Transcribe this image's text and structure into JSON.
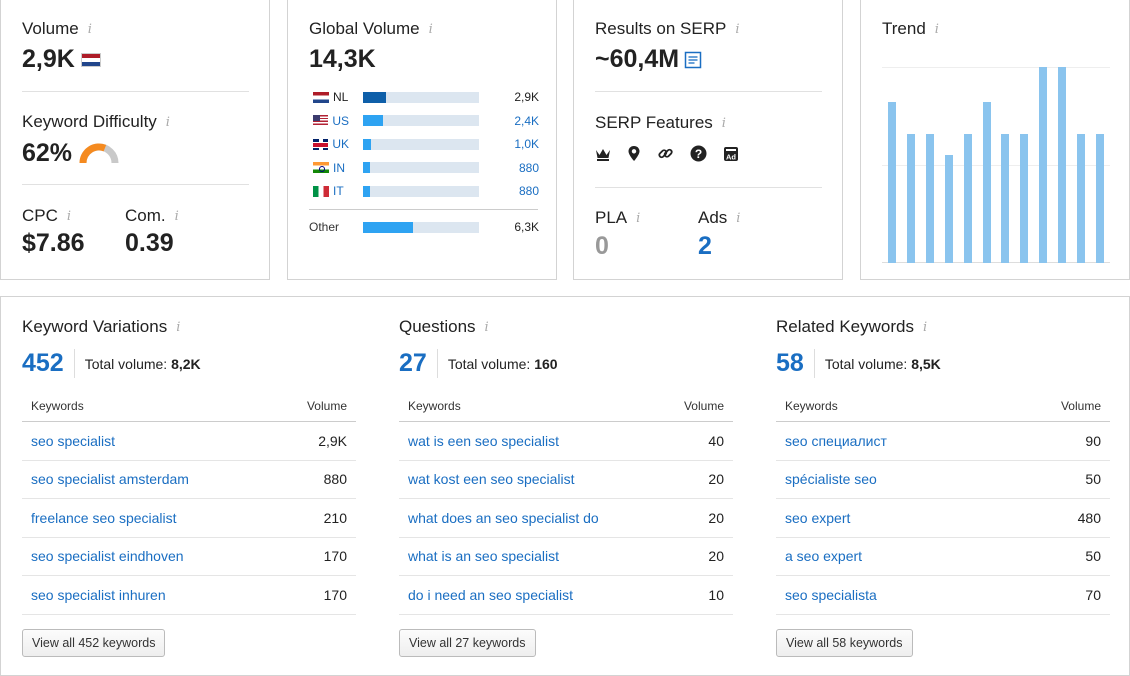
{
  "volume": {
    "label": "Volume",
    "value": "2,9K",
    "flag": "nl"
  },
  "keyword_difficulty": {
    "label": "Keyword Difficulty",
    "value": "62%",
    "level": 0.62,
    "color": "#f58a1f"
  },
  "cpc": {
    "label": "CPC",
    "value": "$7.86"
  },
  "com": {
    "label": "Com.",
    "value": "0.39"
  },
  "global_volume": {
    "label": "Global Volume",
    "value": "14,3K",
    "countries": [
      {
        "code": "NL",
        "flag": "nl",
        "value": "2,9K",
        "share": 0.2,
        "linked": false
      },
      {
        "code": "US",
        "flag": "us",
        "value": "2,4K",
        "share": 0.17,
        "linked": true
      },
      {
        "code": "UK",
        "flag": "uk",
        "value": "1,0K",
        "share": 0.07,
        "linked": true
      },
      {
        "code": "IN",
        "flag": "in",
        "value": "880",
        "share": 0.06,
        "linked": true
      },
      {
        "code": "IT",
        "flag": "it",
        "value": "880",
        "share": 0.06,
        "linked": true
      }
    ],
    "other": {
      "label": "Other",
      "value": "6,3K",
      "share": 0.43
    }
  },
  "serp": {
    "results_label": "Results on SERP",
    "results_value": "~60,4M",
    "features_label": "SERP Features",
    "feature_icons": [
      "crown-icon",
      "map-pin-icon",
      "link-icon",
      "question-icon",
      "ad-icon"
    ],
    "pla_label": "PLA",
    "pla_value": "0",
    "ads_label": "Ads",
    "ads_value": "2"
  },
  "trend": {
    "label": "Trend",
    "values": [
      0.82,
      0.66,
      0.66,
      0.55,
      0.66,
      0.82,
      0.66,
      0.66,
      1.0,
      1.0,
      0.66,
      0.66
    ],
    "color": "#8ac4ee"
  },
  "variations": {
    "title": "Keyword Variations",
    "count": "452",
    "total_label": "Total volume:",
    "total_value": "8,2K",
    "col_keywords": "Keywords",
    "col_volume": "Volume",
    "rows": [
      {
        "kw": "seo specialist",
        "vol": "2,9K"
      },
      {
        "kw": "seo specialist amsterdam",
        "vol": "880"
      },
      {
        "kw": "freelance seo specialist",
        "vol": "210"
      },
      {
        "kw": "seo specialist eindhoven",
        "vol": "170"
      },
      {
        "kw": "seo specialist inhuren",
        "vol": "170"
      }
    ],
    "button": "View all 452 keywords"
  },
  "questions": {
    "title": "Questions",
    "count": "27",
    "total_label": "Total volume:",
    "total_value": "160",
    "col_keywords": "Keywords",
    "col_volume": "Volume",
    "rows": [
      {
        "kw": "wat is een seo specialist",
        "vol": "40"
      },
      {
        "kw": "wat kost een seo specialist",
        "vol": "20"
      },
      {
        "kw": "what does an seo specialist do",
        "vol": "20"
      },
      {
        "kw": "what is an seo specialist",
        "vol": "20"
      },
      {
        "kw": "do i need an seo specialist",
        "vol": "10"
      }
    ],
    "button": "View all 27 keywords"
  },
  "related": {
    "title": "Related Keywords",
    "count": "58",
    "total_label": "Total volume:",
    "total_value": "8,5K",
    "col_keywords": "Keywords",
    "col_volume": "Volume",
    "rows": [
      {
        "kw": "seo специалист",
        "vol": "90"
      },
      {
        "kw": "spécialiste seo",
        "vol": "50"
      },
      {
        "kw": "seo expert",
        "vol": "480"
      },
      {
        "kw": "a seo expert",
        "vol": "50"
      },
      {
        "kw": "seo specialista",
        "vol": "70"
      }
    ],
    "button": "View all 58 keywords"
  },
  "info_glyph": "i"
}
